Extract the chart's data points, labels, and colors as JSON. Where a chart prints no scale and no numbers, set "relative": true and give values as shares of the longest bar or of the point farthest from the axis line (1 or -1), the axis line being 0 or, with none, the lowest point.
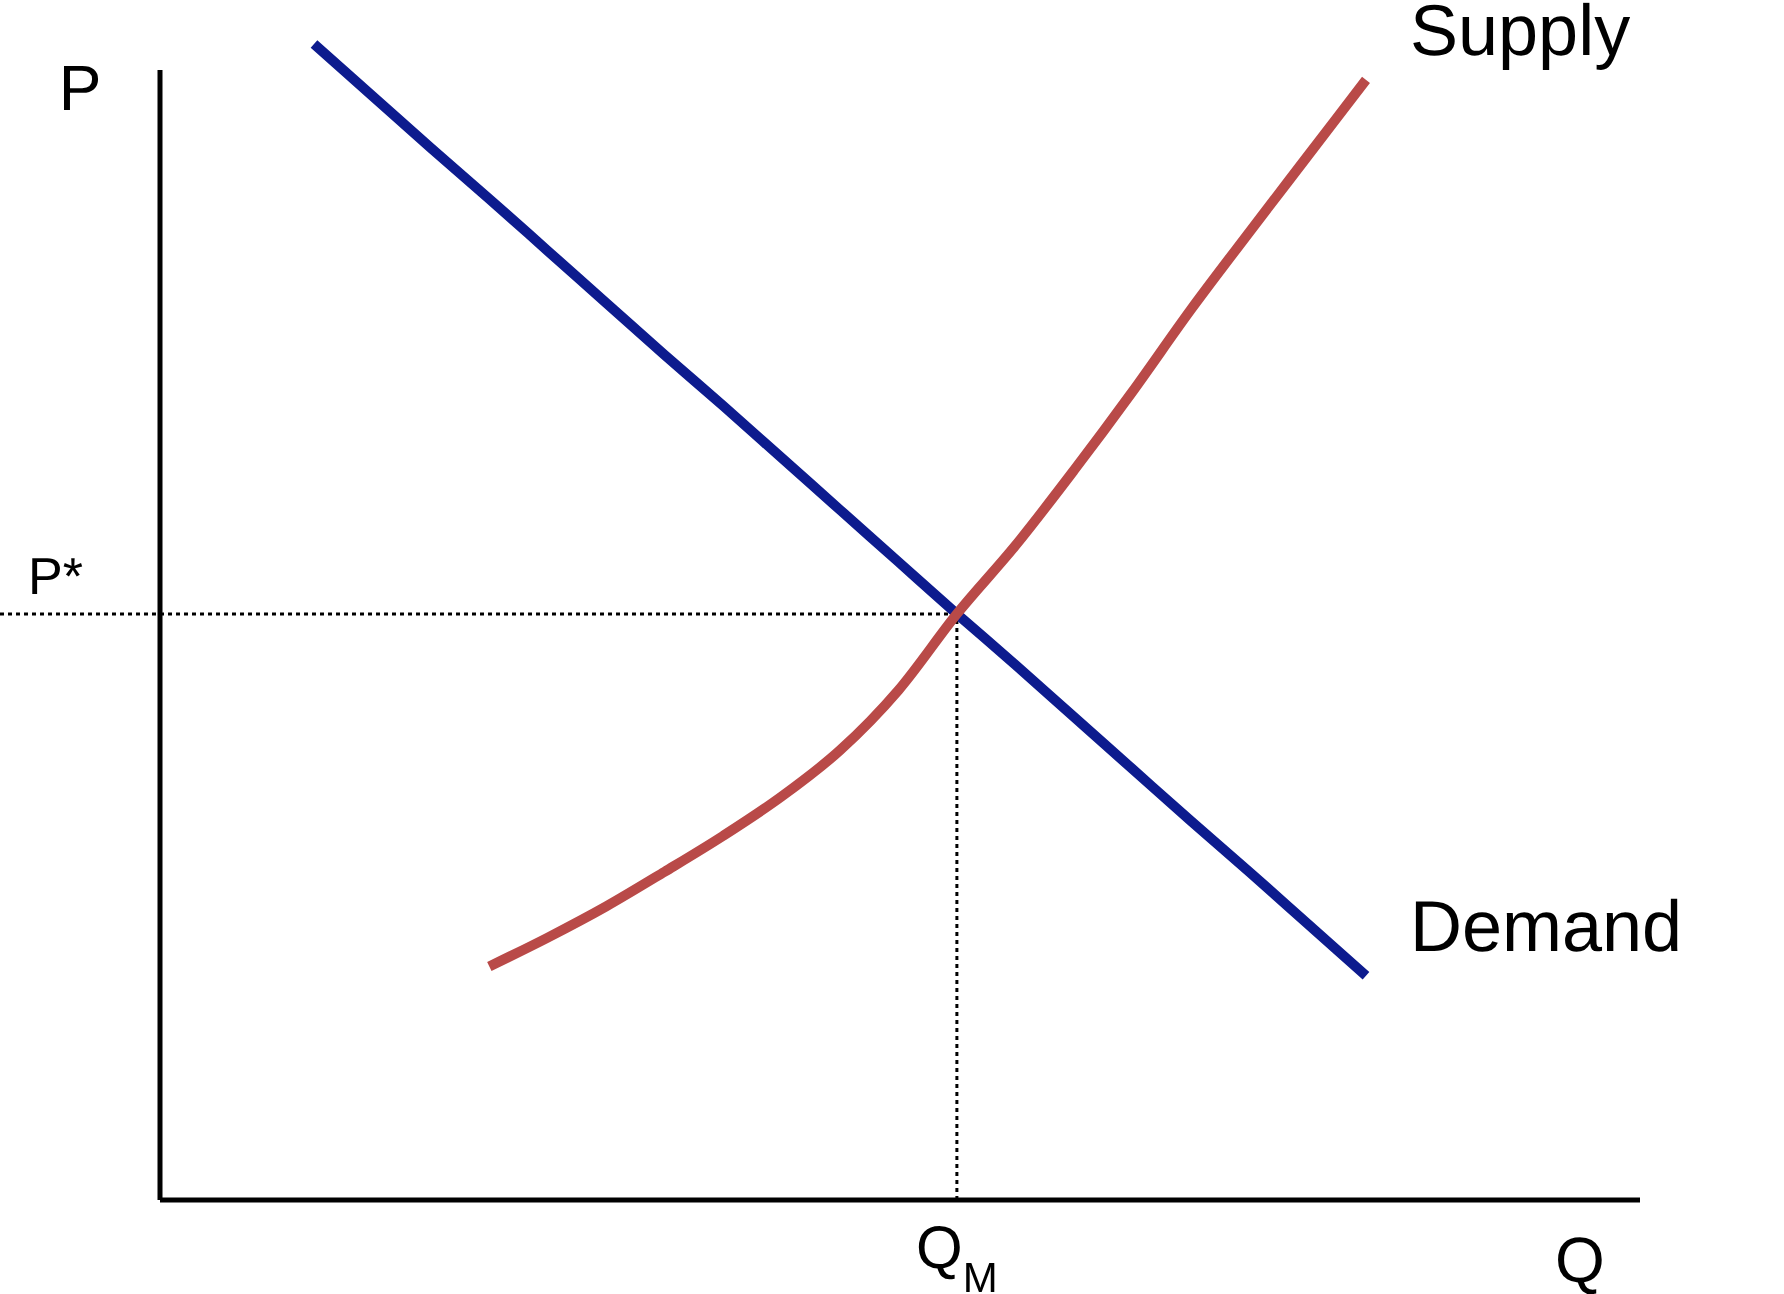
{
  "chart_data": {
    "type": "line",
    "relative": true,
    "xlabel": "Q",
    "ylabel": "P",
    "categories": [
      null,
      null,
      null,
      null,
      null,
      null,
      null,
      null,
      null,
      null,
      null,
      null,
      null,
      null,
      null,
      null,
      null,
      null,
      null
    ],
    "series": [
      {
        "name": "Demand",
        "color": "#0d1b8e",
        "values": [
          1,
          0.955,
          0.91,
          0.866,
          0.821,
          0.776,
          0.731,
          0.687,
          0.642,
          0.597,
          0.552,
          0.507,
          0.463,
          0.418,
          0.373,
          0.328,
          0.284,
          0.239,
          0.194
        ]
      },
      {
        "name": "Supply",
        "color": "#b94a48",
        "values": [
          null,
          null,
          null,
          0.202,
          0.227,
          0.254,
          0.284,
          0.315,
          0.349,
          0.389,
          0.441,
          0.507,
          0.566,
          0.631,
          0.699,
          0.77,
          0.837,
          0.903,
          0.969
        ]
      }
    ],
    "ref_lines": [
      {
        "axis": "y",
        "value": 0.507,
        "label": "P*",
        "color": "#000000",
        "line_style": "dotted"
      }
    ],
    "annotations": [
      "Q$_{M}$"
    ],
    "marker": "none",
    "line_style": "solid",
    "grid": false
  }
}
